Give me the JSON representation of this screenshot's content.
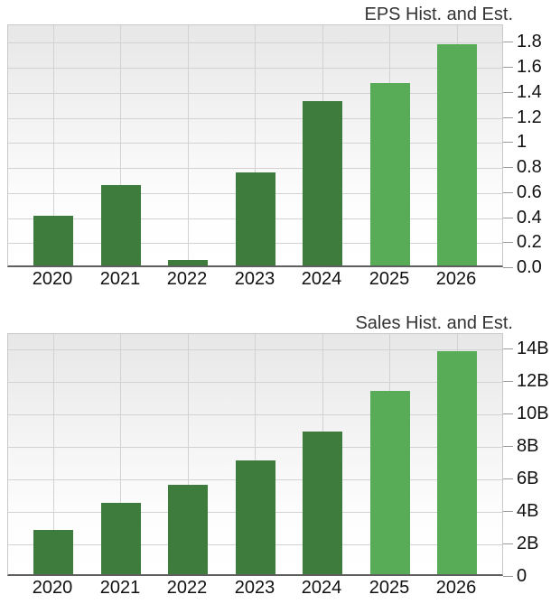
{
  "chart_data": [
    {
      "type": "bar",
      "title": "EPS Hist. and Est.",
      "categories": [
        "2020",
        "2021",
        "2022",
        "2023",
        "2024",
        "2025",
        "2026"
      ],
      "values": [
        0.4,
        0.64,
        0.04,
        0.74,
        1.31,
        1.46,
        1.77
      ],
      "bar_kinds": [
        "historical",
        "historical",
        "historical",
        "historical",
        "historical",
        "estimate",
        "estimate"
      ],
      "xlabel": "",
      "ylabel": "",
      "ylim": [
        0,
        1.94
      ],
      "grid": "both",
      "legend": "none",
      "yticks": [
        {
          "value": 0.0,
          "label": "0.0"
        },
        {
          "value": 0.2,
          "label": "0.2"
        },
        {
          "value": 0.4,
          "label": "0.4"
        },
        {
          "value": 0.6,
          "label": "0.6"
        },
        {
          "value": 0.8,
          "label": "0.8"
        },
        {
          "value": 1.0,
          "label": "1"
        },
        {
          "value": 1.2,
          "label": "1.2"
        },
        {
          "value": 1.4,
          "label": "1.4"
        },
        {
          "value": 1.6,
          "label": "1.6"
        },
        {
          "value": 1.8,
          "label": "1.8"
        }
      ]
    },
    {
      "type": "bar",
      "title": "Sales Hist. and Est.",
      "categories": [
        "2020",
        "2021",
        "2022",
        "2023",
        "2024",
        "2025",
        "2026"
      ],
      "values": [
        2.7,
        4.4,
        5.5,
        7.0,
        8.8,
        11.3,
        13.7
      ],
      "bar_kinds": [
        "historical",
        "historical",
        "historical",
        "historical",
        "historical",
        "estimate",
        "estimate"
      ],
      "xlabel": "",
      "ylabel": "",
      "ylim": [
        0,
        14.94
      ],
      "grid": "both",
      "legend": "none",
      "yticks": [
        {
          "value": 0,
          "label": "0"
        },
        {
          "value": 2,
          "label": "2B"
        },
        {
          "value": 4,
          "label": "4B"
        },
        {
          "value": 6,
          "label": "6B"
        },
        {
          "value": 8,
          "label": "8B"
        },
        {
          "value": 10,
          "label": "10B"
        },
        {
          "value": 12,
          "label": "12B"
        },
        {
          "value": 14,
          "label": "14B"
        }
      ]
    }
  ],
  "style": {
    "historical_bar_color": "#3e7c3e",
    "estimate_bar_color": "#58ab57",
    "gridline_color": "#d2d2d2",
    "plot_bg_top": "#e7e7e7",
    "plot_bg_bottom": "#ffffff",
    "plot_border_color": "#c9c9c9",
    "axis_line_color": "#5f5f5f",
    "tick_mark_color": "#9a9a9a",
    "title_color": "#333333",
    "label_color": "#111111"
  }
}
